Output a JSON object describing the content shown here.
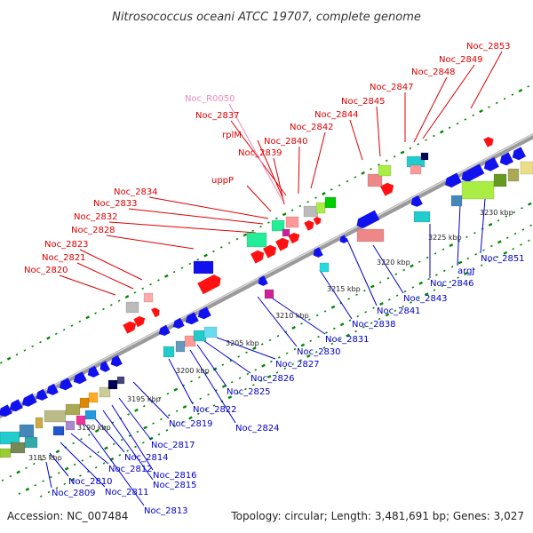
{
  "title": "Nitrosococcus oceani ATCC 19707, complete genome",
  "footer": {
    "accession": "Accession: NC_007484",
    "summary": "Topology: circular; Length: 3,481,691 bp; Genes: 3,027"
  },
  "colors": {
    "forward_label": "#dd0000",
    "reverse_label": "#0000cc",
    "rna_label": "#ee88bb",
    "forward_gene": "#ff1111",
    "reverse_gene": "#1111ee",
    "backbone": "#9a9a9a",
    "tick": "#008800"
  },
  "scale_labels": [
    "3185 kbp",
    "3190 kbp",
    "3195 kbp",
    "3200 kbp",
    "3205 kbp",
    "3210 kbp",
    "3215 kbp",
    "3220 kbp",
    "3225 kbp",
    "3230 kbp"
  ],
  "forward_labels": [
    "Noc_2820",
    "Noc_2821",
    "Noc_2823",
    "Noc_2828",
    "Noc_2832",
    "Noc_2833",
    "Noc_2834",
    "uppP",
    "Noc_2839",
    "rplM",
    "Noc_2837",
    "Noc_2840",
    "Noc_2842",
    "Noc_2844",
    "Noc_2845",
    "Noc_2847",
    "Noc_2848",
    "Noc_2849",
    "Noc_2853"
  ],
  "rna_labels": [
    "Noc_R0050"
  ],
  "reverse_labels": [
    "Noc_2809",
    "Noc_2810",
    "Noc_2811",
    "Noc_2812",
    "Noc_2813",
    "Noc_2814",
    "Noc_2815",
    "Noc_2816",
    "Noc_2817",
    "Noc_2819",
    "Noc_2822",
    "Noc_2824",
    "Noc_2825",
    "Noc_2826",
    "Noc_2827",
    "Noc_2830",
    "Noc_2831",
    "Noc_2838",
    "Noc_2841",
    "Noc_2843",
    "Noc_2846",
    "argJ",
    "Noc_2851"
  ]
}
